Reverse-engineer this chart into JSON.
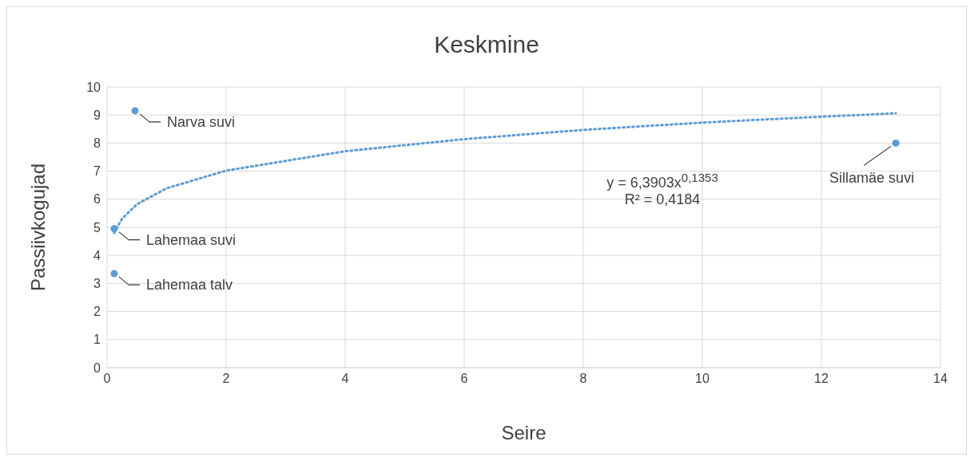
{
  "chart_data": {
    "type": "scatter",
    "title": "Keskmine",
    "xlabel": "Seire",
    "ylabel": "Passiivkogujad",
    "xlim": [
      0,
      14
    ],
    "xticks": [
      0,
      2,
      4,
      6,
      8,
      10,
      12,
      14
    ],
    "ylim": [
      0,
      10
    ],
    "yticks": [
      0,
      1,
      2,
      3,
      4,
      5,
      6,
      7,
      8,
      9,
      10
    ],
    "grid": true,
    "marker": "circle",
    "series": [
      {
        "color": "#5b9bd5",
        "x": [
          0.47,
          0.12,
          0.12,
          13.25
        ],
        "values": [
          9.15,
          4.95,
          3.35,
          8.0
        ]
      },
      {
        "type": "line",
        "color": "#5b9bd5",
        "line_style": "dotted",
        "marker": "none",
        "x": [
          0.12,
          0.25,
          0.5,
          1,
          2,
          4,
          6,
          8,
          10,
          12,
          13.25
        ],
        "values": [
          4.8,
          5.3,
          5.82,
          6.39,
          7.02,
          7.71,
          8.14,
          8.47,
          8.73,
          8.94,
          9.06
        ]
      }
    ],
    "annotations": [
      {
        "text": "Narva suvi",
        "x": 0.47,
        "y": 9.15
      },
      {
        "text": "Lahemaa suvi",
        "x": 0.12,
        "y": 4.95
      },
      {
        "text": "Lahemaa talv",
        "x": 0.12,
        "y": 3.35
      },
      {
        "text": "Sillamäe suvi",
        "x": 13.25,
        "y": 8.0
      },
      "y = 6,3903x$^{0,1353}$",
      "R² = 0,4184"
    ]
  }
}
